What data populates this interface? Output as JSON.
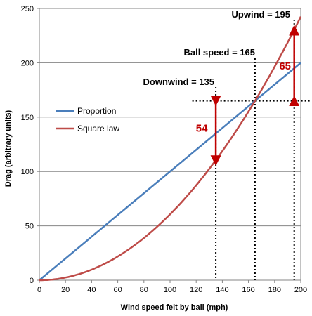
{
  "chart_data": {
    "type": "line",
    "xlabel": "Wind speed felt by ball (mph)",
    "ylabel": "Drag (arbitrary units)",
    "xlim": [
      0,
      200
    ],
    "ylim": [
      0,
      250
    ],
    "x_ticks": [
      "0",
      "20",
      "40",
      "60",
      "80",
      "100",
      "120",
      "140",
      "160",
      "180",
      "200"
    ],
    "y_ticks": [
      "0",
      "50",
      "100",
      "150",
      "200",
      "250"
    ],
    "grid": "horizontal",
    "legend_position": "left",
    "series": [
      {
        "name": "Proportion",
        "color": "#4a7ebb",
        "x": [
          0,
          200
        ],
        "y": [
          0,
          200
        ]
      },
      {
        "name": "Square law",
        "color": "#be4b48",
        "x": [
          0,
          20,
          40,
          60,
          80,
          100,
          120,
          135,
          150,
          165,
          180,
          195,
          200
        ],
        "y": [
          0,
          2,
          8,
          18,
          32,
          50,
          72,
          110,
          136,
          165,
          196,
          230,
          242
        ]
      }
    ],
    "annotations": [
      {
        "label": "Downwind = 135",
        "x": 135
      },
      {
        "label": "Ball speed = 165",
        "x": 165
      },
      {
        "label": "Upwind = 195",
        "x": 195
      }
    ],
    "reference_level": 165,
    "differences": [
      {
        "label": "54",
        "x": 135,
        "from": 165,
        "to": 110
      },
      {
        "label": "65",
        "x": 195,
        "from": 165,
        "to": 230
      }
    ],
    "accent_color": "#c00000"
  }
}
